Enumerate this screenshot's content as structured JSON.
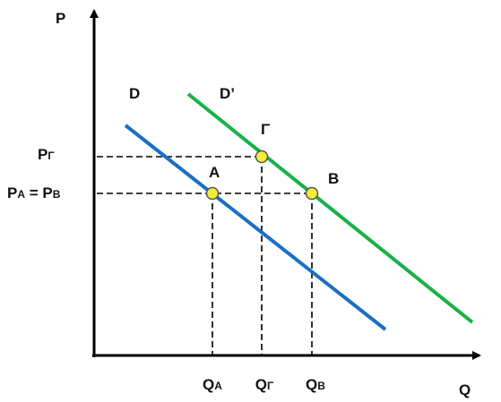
{
  "axes": {
    "y_label": "P",
    "x_label": "Q"
  },
  "curves": [
    {
      "label": "D"
    },
    {
      "label": "D’"
    }
  ],
  "points": [
    {
      "label": "A"
    },
    {
      "label": "Γ"
    },
    {
      "label": "B"
    }
  ],
  "price_labels": [
    [
      {
        "base": "P",
        "sub": "Γ"
      }
    ],
    [
      {
        "base": "P",
        "sub": "A"
      },
      {
        "base": " = "
      },
      {
        "base": "P",
        "sub": "B"
      }
    ]
  ],
  "quantity_labels": [
    [
      {
        "base": "Q",
        "sub": "A"
      }
    ],
    [
      {
        "base": "Q",
        "sub": "Γ"
      }
    ],
    [
      {
        "base": "Q",
        "sub": "B"
      }
    ]
  ]
}
